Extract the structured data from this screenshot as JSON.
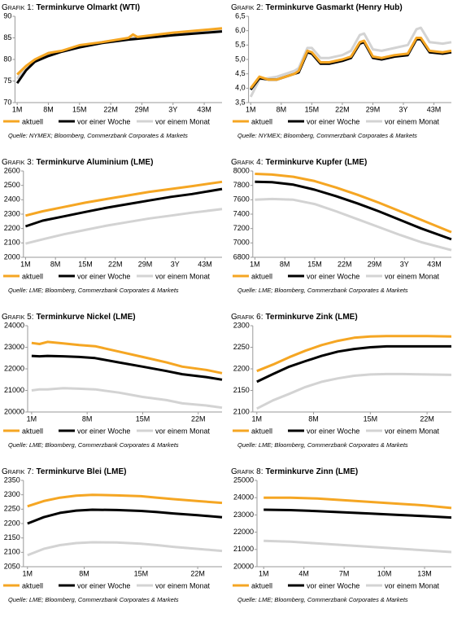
{
  "chart_data": [
    {
      "type": "line",
      "label": "Grafik 1:",
      "title": "Terminkurve Olmarkt (WTI)",
      "source": "Quelle: NYMEX; Bloomberg, Commerzbank Corporates & Markets",
      "x": [
        1,
        3,
        5,
        8,
        11,
        15,
        20,
        26,
        27,
        28,
        36,
        47
      ],
      "xlim": [
        0.5,
        47
      ],
      "xticks": [
        {
          "value": 1,
          "label": "1M"
        },
        {
          "value": 8,
          "label": "8M"
        },
        {
          "value": 15,
          "label": "15M"
        },
        {
          "value": 22,
          "label": "22M"
        },
        {
          "value": 29,
          "label": "29M"
        },
        {
          "value": 36,
          "label": "3Y"
        },
        {
          "value": 43,
          "label": "43M"
        }
      ],
      "ylim": [
        70,
        90
      ],
      "yticks": [
        70,
        75,
        80,
        85,
        90
      ],
      "series": [
        {
          "name": "aktuell",
          "color": "#f5a623",
          "values": [
            76.5,
            78.5,
            80,
            81.5,
            82,
            83.3,
            84,
            85,
            85.8,
            85.2,
            86.2,
            87.2
          ]
        },
        {
          "name": "vor einer Woche",
          "color": "#000000",
          "values": [
            74.5,
            77.5,
            79.5,
            80.8,
            81.8,
            82.8,
            83.8,
            84.6,
            84.7,
            84.8,
            85.6,
            86.5
          ]
        },
        {
          "name": "vor einem Monat",
          "color": "#d3d3d3",
          "values": [
            75.5,
            78.3,
            79.6,
            81,
            82,
            83,
            84,
            84.9,
            85,
            85.1,
            86,
            87
          ]
        }
      ]
    },
    {
      "type": "line",
      "label": "Grafik 2:",
      "title": "Terminkurve Gasmarkt (Henry Hub)",
      "source": "Quelle: NYMEX; Bloomberg, Commerzbank Corporates & Markets",
      "x": [
        1,
        3,
        5,
        7,
        9,
        11,
        12,
        14,
        15,
        17,
        19,
        22,
        24,
        26,
        27,
        29,
        31,
        34,
        37,
        39,
        40,
        42,
        45,
        47
      ],
      "xlim": [
        0.5,
        47
      ],
      "xticks": [
        {
          "value": 1,
          "label": "1M"
        },
        {
          "value": 8,
          "label": "8M"
        },
        {
          "value": 15,
          "label": "15M"
        },
        {
          "value": 22,
          "label": "22M"
        },
        {
          "value": 29,
          "label": "29M"
        },
        {
          "value": 36,
          "label": "3Y"
        },
        {
          "value": 43,
          "label": "43M"
        }
      ],
      "ylim": [
        3.5,
        6.5
      ],
      "yticks": [
        {
          "value": 3.5,
          "label": "3,5"
        },
        {
          "value": 4,
          "label": "4,0"
        },
        {
          "value": 4.5,
          "label": "4,5"
        },
        {
          "value": 5,
          "label": "5,0"
        },
        {
          "value": 5.5,
          "label": "5,5"
        },
        {
          "value": 6,
          "label": "6,0"
        },
        {
          "value": 6.5,
          "label": "6,5"
        }
      ],
      "series": [
        {
          "name": "aktuell",
          "color": "#f5a623",
          "values": [
            4.0,
            4.4,
            4.3,
            4.3,
            4.4,
            4.5,
            4.6,
            5.3,
            5.25,
            4.9,
            4.9,
            5.0,
            5.1,
            5.6,
            5.65,
            5.1,
            5.05,
            5.15,
            5.2,
            5.75,
            5.75,
            5.3,
            5.25,
            5.3
          ]
        },
        {
          "name": "vor einer Woche",
          "color": "#000000",
          "values": [
            3.95,
            4.35,
            4.3,
            4.3,
            4.4,
            4.5,
            4.55,
            5.25,
            5.2,
            4.85,
            4.85,
            4.95,
            5.05,
            5.55,
            5.6,
            5.05,
            5.0,
            5.1,
            5.15,
            5.7,
            5.7,
            5.25,
            5.2,
            5.25
          ]
        },
        {
          "name": "vor einem Monat",
          "color": "#d3d3d3",
          "values": [
            3.7,
            4.3,
            4.35,
            4.4,
            4.5,
            4.6,
            4.7,
            5.4,
            5.4,
            5.05,
            5.05,
            5.15,
            5.3,
            5.85,
            5.9,
            5.35,
            5.3,
            5.4,
            5.5,
            6.05,
            6.1,
            5.6,
            5.55,
            5.6
          ]
        }
      ]
    },
    {
      "type": "line",
      "label": "Grafik 3:",
      "title": "Terminkurve Aluminium (LME)",
      "source": "Quelle: LME; Bloomberg, Commerzbank Corporates & Markets",
      "x": [
        1,
        5,
        10,
        15,
        20,
        25,
        30,
        35,
        40,
        47
      ],
      "xlim": [
        0.5,
        47
      ],
      "xticks": [
        {
          "value": 1,
          "label": "1M"
        },
        {
          "value": 8,
          "label": "8M"
        },
        {
          "value": 15,
          "label": "15M"
        },
        {
          "value": 22,
          "label": "22M"
        },
        {
          "value": 29,
          "label": "29M"
        },
        {
          "value": 36,
          "label": "3Y"
        },
        {
          "value": 43,
          "label": "43M"
        }
      ],
      "ylim": [
        2000,
        2600
      ],
      "yticks": [
        2000,
        2100,
        2200,
        2300,
        2400,
        2500,
        2600
      ],
      "series": [
        {
          "name": "aktuell",
          "color": "#f5a623",
          "values": [
            2290,
            2320,
            2350,
            2380,
            2405,
            2430,
            2455,
            2475,
            2495,
            2525
          ]
        },
        {
          "name": "vor einer Woche",
          "color": "#000000",
          "values": [
            2215,
            2255,
            2285,
            2315,
            2345,
            2370,
            2395,
            2420,
            2440,
            2475
          ]
        },
        {
          "name": "vor einem Monat",
          "color": "#d3d3d3",
          "values": [
            2095,
            2125,
            2160,
            2190,
            2220,
            2245,
            2270,
            2290,
            2310,
            2335
          ]
        }
      ]
    },
    {
      "type": "line",
      "label": "Grafik 4:",
      "title": "Terminkurve Kupfer (LME)",
      "source": "Quelle: LME; Bloomberg, Commerzbank Corporates & Markets",
      "x": [
        1,
        5,
        10,
        15,
        20,
        25,
        30,
        35,
        40,
        47
      ],
      "xlim": [
        0.5,
        47
      ],
      "xticks": [
        {
          "value": 1,
          "label": "1M"
        },
        {
          "value": 8,
          "label": "8M"
        },
        {
          "value": 15,
          "label": "15M"
        },
        {
          "value": 22,
          "label": "22M"
        },
        {
          "value": 29,
          "label": "29M"
        },
        {
          "value": 36,
          "label": "3Y"
        },
        {
          "value": 43,
          "label": "43M"
        }
      ],
      "ylim": [
        6800,
        8000
      ],
      "yticks": [
        6800,
        7000,
        7200,
        7400,
        7600,
        7800,
        8000
      ],
      "series": [
        {
          "name": "aktuell",
          "color": "#f5a623",
          "values": [
            7960,
            7950,
            7920,
            7860,
            7770,
            7670,
            7560,
            7440,
            7320,
            7150
          ]
        },
        {
          "name": "vor einer Woche",
          "color": "#000000",
          "values": [
            7850,
            7845,
            7810,
            7740,
            7650,
            7550,
            7440,
            7320,
            7200,
            7050
          ]
        },
        {
          "name": "vor einem Monat",
          "color": "#d3d3d3",
          "values": [
            7600,
            7610,
            7600,
            7540,
            7440,
            7330,
            7220,
            7110,
            7010,
            6900
          ]
        }
      ]
    },
    {
      "type": "line",
      "label": "Grafik 5:",
      "title": "Terminkurve Nickel (LME)",
      "source": "Quelle: LME; Bloomberg, Commerzbank Corporates & Markets",
      "x": [
        1,
        2,
        3,
        5,
        7,
        9,
        12,
        15,
        18,
        20,
        23,
        25
      ],
      "xlim": [
        0.5,
        25
      ],
      "xticks": [
        {
          "value": 1,
          "label": "1M"
        },
        {
          "value": 8,
          "label": "8M"
        },
        {
          "value": 15,
          "label": "15M"
        },
        {
          "value": 22,
          "label": "22M"
        }
      ],
      "ylim": [
        20000,
        24000
      ],
      "yticks": [
        20000,
        21000,
        22000,
        23000,
        24000
      ],
      "series": [
        {
          "name": "aktuell",
          "color": "#f5a623",
          "values": [
            23200,
            23150,
            23250,
            23180,
            23100,
            23050,
            22800,
            22550,
            22300,
            22100,
            21950,
            21800
          ]
        },
        {
          "name": "vor einer Woche",
          "color": "#000000",
          "values": [
            22600,
            22580,
            22600,
            22580,
            22550,
            22500,
            22300,
            22100,
            21900,
            21750,
            21620,
            21500
          ]
        },
        {
          "name": "vor einem Monat",
          "color": "#d3d3d3",
          "values": [
            21000,
            21050,
            21050,
            21100,
            21080,
            21050,
            20900,
            20700,
            20550,
            20400,
            20300,
            20200
          ]
        }
      ]
    },
    {
      "type": "line",
      "label": "Grafik 6:",
      "title": "Terminkurve Zink (LME)",
      "source": "Quelle: LME; Bloomberg, Commerzbank Corporates & Markets",
      "x": [
        1,
        3,
        5,
        7,
        9,
        11,
        13,
        15,
        17,
        19,
        22,
        25
      ],
      "xlim": [
        0.5,
        25
      ],
      "xticks": [
        {
          "value": 1,
          "label": "1M"
        },
        {
          "value": 8,
          "label": "8M"
        },
        {
          "value": 15,
          "label": "15M"
        },
        {
          "value": 22,
          "label": "22M"
        }
      ],
      "ylim": [
        2100,
        2300
      ],
      "yticks": [
        2100,
        2150,
        2200,
        2250,
        2300
      ],
      "series": [
        {
          "name": "aktuell",
          "color": "#f5a623",
          "values": [
            2195,
            2210,
            2227,
            2242,
            2255,
            2265,
            2272,
            2275,
            2276,
            2276,
            2276,
            2275
          ]
        },
        {
          "name": "vor einer Woche",
          "color": "#000000",
          "values": [
            2170,
            2188,
            2205,
            2218,
            2230,
            2240,
            2246,
            2250,
            2252,
            2252,
            2252,
            2252
          ]
        },
        {
          "name": "vor einem Monat",
          "color": "#d3d3d3",
          "values": [
            2108,
            2127,
            2142,
            2158,
            2170,
            2178,
            2184,
            2187,
            2188,
            2188,
            2187,
            2186
          ]
        }
      ]
    },
    {
      "type": "line",
      "label": "Grafik 7:",
      "title": "Terminkurve Blei (LME)",
      "source": "Quelle: LME; Bloomberg, Commerzbank Corporates & Markets",
      "x": [
        1,
        3,
        5,
        7,
        9,
        12,
        15,
        17,
        19,
        22,
        25
      ],
      "xlim": [
        0.5,
        25
      ],
      "xticks": [
        {
          "value": 1,
          "label": "1M"
        },
        {
          "value": 8,
          "label": "8M"
        },
        {
          "value": 15,
          "label": "15M"
        },
        {
          "value": 22,
          "label": "22M"
        }
      ],
      "ylim": [
        2050,
        2350
      ],
      "yticks": [
        2050,
        2100,
        2150,
        2200,
        2250,
        2300,
        2350
      ],
      "series": [
        {
          "name": "aktuell",
          "color": "#f5a623",
          "values": [
            2260,
            2278,
            2290,
            2297,
            2300,
            2298,
            2295,
            2290,
            2285,
            2278,
            2272
          ]
        },
        {
          "name": "vor einer Woche",
          "color": "#000000",
          "values": [
            2200,
            2222,
            2237,
            2245,
            2248,
            2247,
            2244,
            2240,
            2235,
            2229,
            2222
          ]
        },
        {
          "name": "vor einem Monat",
          "color": "#d3d3d3",
          "values": [
            2090,
            2112,
            2125,
            2132,
            2135,
            2134,
            2130,
            2125,
            2119,
            2112,
            2105
          ]
        }
      ]
    },
    {
      "type": "line",
      "label": "Grafik 8:",
      "title": "Terminkurve Zinn (LME)",
      "source": "Quelle: LME; Bloomberg, Commerzbank Corporates & Markets",
      "x": [
        1,
        3,
        5,
        7,
        9,
        11,
        13,
        15
      ],
      "xlim": [
        0.5,
        15
      ],
      "xticks": [
        {
          "value": 1,
          "label": "1M"
        },
        {
          "value": 4,
          "label": "4M"
        },
        {
          "value": 7,
          "label": "7M"
        },
        {
          "value": 10,
          "label": "10M"
        },
        {
          "value": 13,
          "label": "13M"
        }
      ],
      "ylim": [
        20000,
        25000
      ],
      "yticks": [
        20000,
        21000,
        22000,
        23000,
        24000,
        25000
      ],
      "series": [
        {
          "name": "aktuell",
          "color": "#f5a623",
          "values": [
            24000,
            24000,
            23950,
            23850,
            23750,
            23650,
            23550,
            23400
          ]
        },
        {
          "name": "vor einer Woche",
          "color": "#000000",
          "values": [
            23300,
            23280,
            23220,
            23150,
            23080,
            23000,
            22930,
            22850
          ]
        },
        {
          "name": "vor einem Monat",
          "color": "#d3d3d3",
          "values": [
            21500,
            21450,
            21350,
            21250,
            21150,
            21050,
            20950,
            20850
          ]
        }
      ]
    }
  ]
}
